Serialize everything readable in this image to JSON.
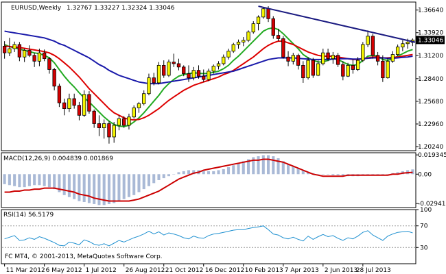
{
  "header": {
    "symbol_tf": "EURUSD,Weekly",
    "ohlc": "1.32767 1.33227 1.32324 1.33046"
  },
  "copyright": "FC MT4, © 2001-2013, MetaQuotes Software Corp.",
  "colors": {
    "bull": "#f5f500",
    "bear": "#d40000",
    "ma_fast": "#22aa22",
    "ma_mid": "#dd0000",
    "ma_slow": "#1a1aaa",
    "trendline": "#1a1a80",
    "macd_hist": "#a9b9d6",
    "macd_signal": "#cc0000",
    "rsi_line": "#1e90d0",
    "price_tag": "#000000"
  },
  "chart_data": [
    {
      "type": "candlestick",
      "title": "EURUSD,Weekly",
      "x_tick_labels": [
        "11 Mar 2012",
        "6 May 2012",
        "1 Jul 2012",
        "26 Aug 2012",
        "21 Oct 2012",
        "16 Dec 2012",
        "10 Feb 2013",
        "7 Apr 2013",
        "2 Jun 2013",
        "28 Jul 2013"
      ],
      "y_tick_labels": [
        "1.36640",
        "1.33920",
        "1.31200",
        "1.28400",
        "1.25680",
        "1.22960",
        "1.20240"
      ],
      "ylim": [
        1.1975,
        1.376
      ],
      "current_price_label": "1.33046",
      "candles": [
        [
          1.323,
          1.329,
          1.308,
          1.315
        ],
        [
          1.315,
          1.333,
          1.311,
          1.32
        ],
        [
          1.32,
          1.3285,
          1.316,
          1.325
        ],
        [
          1.325,
          1.328,
          1.305,
          1.31
        ],
        [
          1.31,
          1.32,
          1.304,
          1.318
        ],
        [
          1.318,
          1.324,
          1.31,
          1.312
        ],
        [
          1.312,
          1.315,
          1.298,
          1.305
        ],
        [
          1.305,
          1.32,
          1.299,
          1.315
        ],
        [
          1.315,
          1.319,
          1.305,
          1.308
        ],
        [
          1.308,
          1.31,
          1.29,
          1.295
        ],
        [
          1.295,
          1.297,
          1.27,
          1.275
        ],
        [
          1.275,
          1.278,
          1.25,
          1.255
        ],
        [
          1.255,
          1.26,
          1.24,
          1.248
        ],
        [
          1.248,
          1.266,
          1.244,
          1.26
        ],
        [
          1.26,
          1.266,
          1.248,
          1.252
        ],
        [
          1.252,
          1.256,
          1.234,
          1.24
        ],
        [
          1.24,
          1.27,
          1.238,
          1.265
        ],
        [
          1.265,
          1.269,
          1.242,
          1.245
        ],
        [
          1.245,
          1.247,
          1.225,
          1.23
        ],
        [
          1.23,
          1.24,
          1.215,
          1.225
        ],
        [
          1.225,
          1.235,
          1.212,
          1.23
        ],
        [
          1.23,
          1.233,
          1.206,
          1.214
        ],
        [
          1.214,
          1.232,
          1.207,
          1.228
        ],
        [
          1.228,
          1.24,
          1.222,
          1.236
        ],
        [
          1.236,
          1.239,
          1.225,
          1.228
        ],
        [
          1.228,
          1.242,
          1.223,
          1.238
        ],
        [
          1.238,
          1.252,
          1.236,
          1.249
        ],
        [
          1.249,
          1.256,
          1.243,
          1.254
        ],
        [
          1.254,
          1.27,
          1.252,
          1.266
        ],
        [
          1.266,
          1.29,
          1.264,
          1.285
        ],
        [
          1.285,
          1.291,
          1.276,
          1.279
        ],
        [
          1.279,
          1.304,
          1.277,
          1.3
        ],
        [
          1.3,
          1.306,
          1.285,
          1.288
        ],
        [
          1.288,
          1.307,
          1.286,
          1.304
        ],
        [
          1.304,
          1.314,
          1.298,
          1.302
        ],
        [
          1.302,
          1.308,
          1.294,
          1.298
        ],
        [
          1.298,
          1.3,
          1.287,
          1.29
        ],
        [
          1.29,
          1.3,
          1.28,
          1.285
        ],
        [
          1.285,
          1.298,
          1.282,
          1.294
        ],
        [
          1.294,
          1.3,
          1.284,
          1.287
        ],
        [
          1.287,
          1.295,
          1.28,
          1.283
        ],
        [
          1.283,
          1.296,
          1.281,
          1.293
        ],
        [
          1.293,
          1.301,
          1.29,
          1.299
        ],
        [
          1.299,
          1.305,
          1.295,
          1.302
        ],
        [
          1.302,
          1.313,
          1.3,
          1.31
        ],
        [
          1.31,
          1.32,
          1.307,
          1.317
        ],
        [
          1.317,
          1.327,
          1.315,
          1.325
        ],
        [
          1.325,
          1.331,
          1.32,
          1.328
        ],
        [
          1.328,
          1.334,
          1.323,
          1.33
        ],
        [
          1.33,
          1.342,
          1.328,
          1.34
        ],
        [
          1.34,
          1.353,
          1.338,
          1.35
        ],
        [
          1.35,
          1.36,
          1.342,
          1.358
        ],
        [
          1.358,
          1.37,
          1.356,
          1.368
        ],
        [
          1.368,
          1.371,
          1.352,
          1.356
        ],
        [
          1.356,
          1.359,
          1.332,
          1.336
        ],
        [
          1.336,
          1.344,
          1.329,
          1.332
        ],
        [
          1.332,
          1.335,
          1.308,
          1.31
        ],
        [
          1.31,
          1.317,
          1.299,
          1.305
        ],
        [
          1.305,
          1.315,
          1.301,
          1.312
        ],
        [
          1.312,
          1.314,
          1.295,
          1.3
        ],
        [
          1.3,
          1.305,
          1.279,
          1.285
        ],
        [
          1.285,
          1.31,
          1.283,
          1.306
        ],
        [
          1.306,
          1.309,
          1.285,
          1.288
        ],
        [
          1.288,
          1.306,
          1.287,
          1.302
        ],
        [
          1.302,
          1.32,
          1.3,
          1.315
        ],
        [
          1.315,
          1.32,
          1.305,
          1.308
        ],
        [
          1.308,
          1.316,
          1.302,
          1.312
        ],
        [
          1.312,
          1.315,
          1.298,
          1.301
        ],
        [
          1.301,
          1.305,
          1.282,
          1.287
        ],
        [
          1.287,
          1.303,
          1.286,
          1.3
        ],
        [
          1.3,
          1.307,
          1.29,
          1.295
        ],
        [
          1.295,
          1.31,
          1.293,
          1.306
        ],
        [
          1.306,
          1.328,
          1.304,
          1.325
        ],
        [
          1.325,
          1.342,
          1.322,
          1.335
        ],
        [
          1.335,
          1.338,
          1.308,
          1.312
        ],
        [
          1.312,
          1.316,
          1.3,
          1.305
        ],
        [
          1.305,
          1.312,
          1.28,
          1.285
        ],
        [
          1.285,
          1.309,
          1.284,
          1.305
        ],
        [
          1.305,
          1.317,
          1.303,
          1.313
        ],
        [
          1.313,
          1.325,
          1.311,
          1.322
        ],
        [
          1.322,
          1.33,
          1.317,
          1.326
        ],
        [
          1.326,
          1.332,
          1.32,
          1.328
        ],
        [
          1.3276,
          1.3323,
          1.3232,
          1.3305
        ]
      ],
      "moving_averages": [
        {
          "name": "fast",
          "values": [
            1.325,
            1.3225,
            1.321,
            1.3195,
            1.318,
            1.3165,
            1.315,
            1.314,
            1.312,
            1.309,
            1.303,
            1.295,
            1.287,
            1.28,
            1.274,
            1.267,
            1.261,
            1.256,
            1.25,
            1.244,
            1.238,
            1.233,
            1.229,
            1.227,
            1.2265,
            1.228,
            1.232,
            1.237,
            1.243,
            1.25,
            1.257,
            1.264,
            1.272,
            1.278,
            1.283,
            1.287,
            1.289,
            1.29,
            1.291,
            1.2905,
            1.29,
            1.2905,
            1.2915,
            1.293,
            1.296,
            1.3,
            1.306,
            1.311,
            1.317,
            1.323,
            1.329,
            1.335,
            1.341,
            1.344,
            1.345,
            1.343,
            1.338,
            1.332,
            1.326,
            1.32,
            1.313,
            1.309,
            1.306,
            1.304,
            1.304,
            1.306,
            1.308,
            1.307,
            1.304,
            1.301,
            1.3,
            1.301,
            1.306,
            1.311,
            1.312,
            1.311,
            1.307,
            1.306,
            1.308,
            1.311,
            1.314,
            1.317,
            1.319
          ]
        },
        {
          "name": "mid",
          "values": [
            1.323,
            1.3225,
            1.322,
            1.3215,
            1.3205,
            1.3195,
            1.3185,
            1.3175,
            1.3165,
            1.315,
            1.312,
            1.308,
            1.303,
            1.298,
            1.292,
            1.286,
            1.279,
            1.272,
            1.266,
            1.26,
            1.254,
            1.248,
            1.243,
            1.24,
            1.237,
            1.235,
            1.2345,
            1.235,
            1.237,
            1.24,
            1.244,
            1.248,
            1.253,
            1.258,
            1.262,
            1.266,
            1.27,
            1.273,
            1.276,
            1.278,
            1.28,
            1.282,
            1.284,
            1.286,
            1.289,
            1.291,
            1.294,
            1.298,
            1.302,
            1.306,
            1.31,
            1.315,
            1.32,
            1.324,
            1.327,
            1.329,
            1.329,
            1.327,
            1.325,
            1.322,
            1.319,
            1.316,
            1.314,
            1.312,
            1.311,
            1.311,
            1.311,
            1.31,
            1.309,
            1.308,
            1.307,
            1.307,
            1.308,
            1.309,
            1.31,
            1.31,
            1.309,
            1.309,
            1.3095,
            1.31,
            1.311,
            1.312,
            1.313
          ]
        },
        {
          "name": "slow",
          "values": [
            1.341,
            1.34,
            1.339,
            1.338,
            1.337,
            1.336,
            1.335,
            1.334,
            1.333,
            1.331,
            1.329,
            1.326,
            1.324,
            1.321,
            1.318,
            1.315,
            1.312,
            1.309,
            1.305,
            1.301,
            1.298,
            1.294,
            1.291,
            1.288,
            1.286,
            1.284,
            1.282,
            1.28,
            1.279,
            1.278,
            1.278,
            1.278,
            1.279,
            1.28,
            1.281,
            1.282,
            1.283,
            1.284,
            1.285,
            1.286,
            1.287,
            1.288,
            1.289,
            1.29,
            1.291,
            1.292,
            1.293,
            1.295,
            1.297,
            1.299,
            1.301,
            1.303,
            1.305,
            1.307,
            1.308,
            1.309,
            1.309,
            1.309,
            1.309,
            1.3085,
            1.308,
            1.3075,
            1.307,
            1.307,
            1.307,
            1.307,
            1.3075,
            1.308,
            1.308,
            1.308,
            1.3075,
            1.3075,
            1.308,
            1.3085,
            1.309,
            1.309,
            1.309,
            1.3085,
            1.3085,
            1.309,
            1.3095,
            1.31,
            1.311
          ]
        }
      ],
      "trendline": {
        "start": [
          51,
          1.371
        ],
        "end": [
          82,
          1.329
        ]
      }
    },
    {
      "type": "bar",
      "title": "MACD(12,26,9) 0.004839 0.001869",
      "y_tick_labels": [
        "0.019345",
        "0.00",
        "-0.02941"
      ],
      "ylim": [
        -0.0335,
        0.0215
      ],
      "macd_values": [
        -0.01,
        -0.011,
        -0.012,
        -0.013,
        -0.013,
        -0.012,
        -0.011,
        -0.011,
        -0.012,
        -0.013,
        -0.015,
        -0.018,
        -0.021,
        -0.023,
        -0.025,
        -0.027,
        -0.028,
        -0.029,
        -0.03,
        -0.031,
        -0.031,
        -0.03,
        -0.029,
        -0.027,
        -0.025,
        -0.023,
        -0.021,
        -0.018,
        -0.015,
        -0.012,
        -0.009,
        -0.006,
        -0.004,
        -0.002,
        0.0,
        0.002,
        0.003,
        0.004,
        0.004,
        0.004,
        0.003,
        0.003,
        0.003,
        0.004,
        0.005,
        0.007,
        0.009,
        0.011,
        0.013,
        0.015,
        0.017,
        0.018,
        0.019,
        0.019,
        0.018,
        0.016,
        0.013,
        0.01,
        0.008,
        0.006,
        0.004,
        0.002,
        0.001,
        0.0,
        0.0,
        0.0,
        -0.001,
        -0.001,
        -0.002,
        -0.002,
        -0.002,
        -0.002,
        -0.001,
        -0.001,
        -0.001,
        -0.001,
        -0.001,
        0.0,
        0.001,
        0.002,
        0.003,
        0.004,
        0.0048
      ],
      "signal_values": [
        -0.018,
        -0.018,
        -0.017,
        -0.017,
        -0.016,
        -0.016,
        -0.015,
        -0.015,
        -0.014,
        -0.014,
        -0.014,
        -0.015,
        -0.016,
        -0.017,
        -0.018,
        -0.02,
        -0.021,
        -0.022,
        -0.024,
        -0.025,
        -0.026,
        -0.027,
        -0.027,
        -0.027,
        -0.027,
        -0.027,
        -0.026,
        -0.025,
        -0.023,
        -0.021,
        -0.019,
        -0.017,
        -0.014,
        -0.011,
        -0.008,
        -0.005,
        -0.003,
        -0.001,
        0.001,
        0.002,
        0.004,
        0.005,
        0.006,
        0.007,
        0.008,
        0.009,
        0.01,
        0.011,
        0.012,
        0.013,
        0.014,
        0.014,
        0.015,
        0.015,
        0.014,
        0.013,
        0.012,
        0.01,
        0.008,
        0.006,
        0.004,
        0.002,
        0.0,
        -0.001,
        -0.002,
        -0.002,
        -0.002,
        -0.002,
        -0.002,
        -0.001,
        -0.001,
        -0.001,
        -0.001,
        -0.001,
        -0.001,
        -0.001,
        -0.001,
        -0.001,
        0.0,
        0.0,
        0.001,
        0.0015,
        0.001869
      ]
    },
    {
      "type": "line",
      "title": "RSI(14) 56.5179",
      "y_tick_labels": [
        "100",
        "70",
        "30",
        "0"
      ],
      "ylim": [
        0,
        100
      ],
      "levels": [
        70,
        30
      ],
      "values": [
        46,
        49,
        52,
        43,
        44,
        48,
        45,
        50,
        47,
        43,
        39,
        34,
        33,
        40,
        38,
        35,
        44,
        41,
        36,
        34,
        37,
        33,
        38,
        43,
        40,
        44,
        48,
        51,
        55,
        60,
        55,
        59,
        53,
        57,
        55,
        52,
        48,
        46,
        51,
        48,
        47,
        52,
        55,
        56,
        58,
        60,
        62,
        63,
        63,
        65,
        67,
        68,
        70,
        63,
        55,
        53,
        48,
        46,
        49,
        45,
        42,
        51,
        45,
        50,
        54,
        50,
        52,
        47,
        43,
        48,
        46,
        51,
        58,
        61,
        53,
        48,
        43,
        51,
        55,
        58,
        59,
        60,
        57
      ]
    }
  ]
}
